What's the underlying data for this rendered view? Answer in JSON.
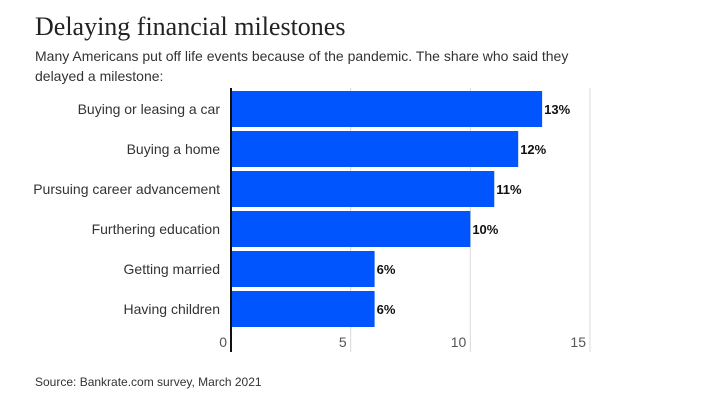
{
  "chart_data": {
    "type": "bar",
    "orientation": "horizontal",
    "title": "Delaying financial milestones",
    "subtitle": "Many Americans put off life events because of the pandemic. The share who said they delayed a milestone:",
    "source": "Source: Bankrate.com survey, March 2021",
    "categories": [
      "Buying or leasing a car",
      "Buying a home",
      "Pursuing career advancement",
      "Furthering education",
      "Getting married",
      "Having children"
    ],
    "values": [
      13,
      12,
      11,
      10,
      6,
      6
    ],
    "data_labels": [
      "13%",
      "12%",
      "11%",
      "10%",
      "6%",
      "6%"
    ],
    "xlim": [
      0,
      15
    ],
    "xticks": [
      "0",
      "5",
      "10",
      "15"
    ],
    "grid": true,
    "bar_color": "#0055ff"
  }
}
